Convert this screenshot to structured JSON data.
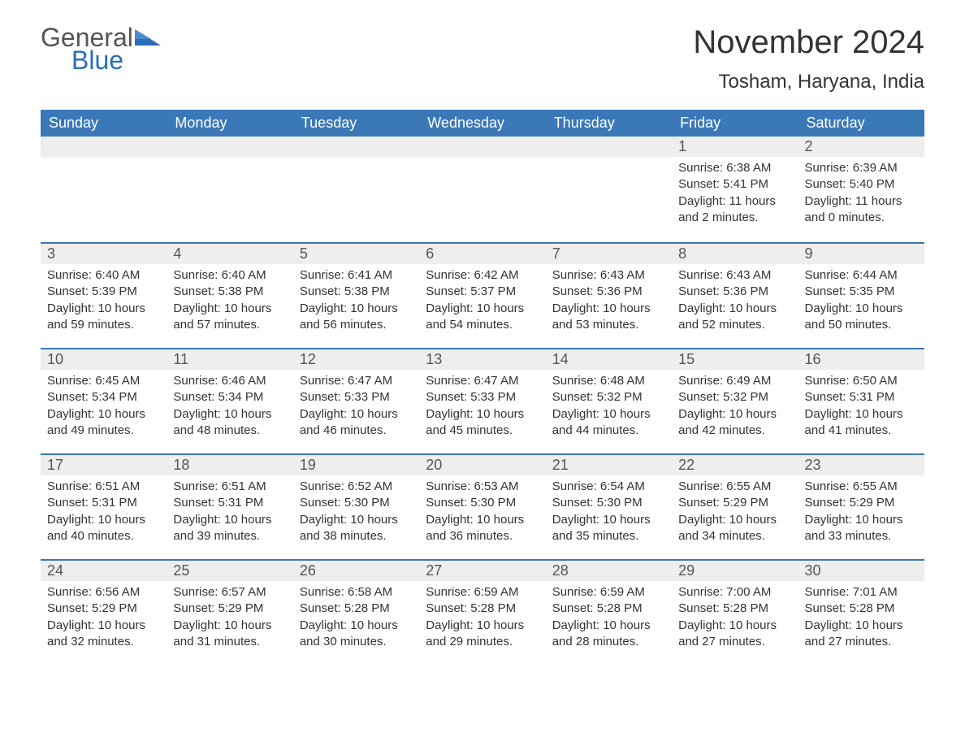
{
  "logo": {
    "general": "General",
    "blue": "Blue"
  },
  "title": "November 2024",
  "subtitle": "Tosham, Haryana, India",
  "colors": {
    "header_bg": "#3b78b8",
    "header_text": "#ffffff",
    "daynum_bg": "#eeeeee",
    "daynum_border": "#3b78b8",
    "body_text": "#333333",
    "logo_blue": "#2a6db8",
    "page_bg": "#ffffff"
  },
  "fonts": {
    "title_size_pt": 30,
    "subtitle_size_pt": 18,
    "header_size_pt": 14,
    "daynum_size_pt": 14,
    "body_size_pt": 11
  },
  "weekdays": [
    "Sunday",
    "Monday",
    "Tuesday",
    "Wednesday",
    "Thursday",
    "Friday",
    "Saturday"
  ],
  "weeks": [
    [
      null,
      null,
      null,
      null,
      null,
      {
        "n": "1",
        "sunrise": "6:38 AM",
        "sunset": "5:41 PM",
        "daylight": "11 hours and 2 minutes."
      },
      {
        "n": "2",
        "sunrise": "6:39 AM",
        "sunset": "5:40 PM",
        "daylight": "11 hours and 0 minutes."
      }
    ],
    [
      {
        "n": "3",
        "sunrise": "6:40 AM",
        "sunset": "5:39 PM",
        "daylight": "10 hours and 59 minutes."
      },
      {
        "n": "4",
        "sunrise": "6:40 AM",
        "sunset": "5:38 PM",
        "daylight": "10 hours and 57 minutes."
      },
      {
        "n": "5",
        "sunrise": "6:41 AM",
        "sunset": "5:38 PM",
        "daylight": "10 hours and 56 minutes."
      },
      {
        "n": "6",
        "sunrise": "6:42 AM",
        "sunset": "5:37 PM",
        "daylight": "10 hours and 54 minutes."
      },
      {
        "n": "7",
        "sunrise": "6:43 AM",
        "sunset": "5:36 PM",
        "daylight": "10 hours and 53 minutes."
      },
      {
        "n": "8",
        "sunrise": "6:43 AM",
        "sunset": "5:36 PM",
        "daylight": "10 hours and 52 minutes."
      },
      {
        "n": "9",
        "sunrise": "6:44 AM",
        "sunset": "5:35 PM",
        "daylight": "10 hours and 50 minutes."
      }
    ],
    [
      {
        "n": "10",
        "sunrise": "6:45 AM",
        "sunset": "5:34 PM",
        "daylight": "10 hours and 49 minutes."
      },
      {
        "n": "11",
        "sunrise": "6:46 AM",
        "sunset": "5:34 PM",
        "daylight": "10 hours and 48 minutes."
      },
      {
        "n": "12",
        "sunrise": "6:47 AM",
        "sunset": "5:33 PM",
        "daylight": "10 hours and 46 minutes."
      },
      {
        "n": "13",
        "sunrise": "6:47 AM",
        "sunset": "5:33 PM",
        "daylight": "10 hours and 45 minutes."
      },
      {
        "n": "14",
        "sunrise": "6:48 AM",
        "sunset": "5:32 PM",
        "daylight": "10 hours and 44 minutes."
      },
      {
        "n": "15",
        "sunrise": "6:49 AM",
        "sunset": "5:32 PM",
        "daylight": "10 hours and 42 minutes."
      },
      {
        "n": "16",
        "sunrise": "6:50 AM",
        "sunset": "5:31 PM",
        "daylight": "10 hours and 41 minutes."
      }
    ],
    [
      {
        "n": "17",
        "sunrise": "6:51 AM",
        "sunset": "5:31 PM",
        "daylight": "10 hours and 40 minutes."
      },
      {
        "n": "18",
        "sunrise": "6:51 AM",
        "sunset": "5:31 PM",
        "daylight": "10 hours and 39 minutes."
      },
      {
        "n": "19",
        "sunrise": "6:52 AM",
        "sunset": "5:30 PM",
        "daylight": "10 hours and 38 minutes."
      },
      {
        "n": "20",
        "sunrise": "6:53 AM",
        "sunset": "5:30 PM",
        "daylight": "10 hours and 36 minutes."
      },
      {
        "n": "21",
        "sunrise": "6:54 AM",
        "sunset": "5:30 PM",
        "daylight": "10 hours and 35 minutes."
      },
      {
        "n": "22",
        "sunrise": "6:55 AM",
        "sunset": "5:29 PM",
        "daylight": "10 hours and 34 minutes."
      },
      {
        "n": "23",
        "sunrise": "6:55 AM",
        "sunset": "5:29 PM",
        "daylight": "10 hours and 33 minutes."
      }
    ],
    [
      {
        "n": "24",
        "sunrise": "6:56 AM",
        "sunset": "5:29 PM",
        "daylight": "10 hours and 32 minutes."
      },
      {
        "n": "25",
        "sunrise": "6:57 AM",
        "sunset": "5:29 PM",
        "daylight": "10 hours and 31 minutes."
      },
      {
        "n": "26",
        "sunrise": "6:58 AM",
        "sunset": "5:28 PM",
        "daylight": "10 hours and 30 minutes."
      },
      {
        "n": "27",
        "sunrise": "6:59 AM",
        "sunset": "5:28 PM",
        "daylight": "10 hours and 29 minutes."
      },
      {
        "n": "28",
        "sunrise": "6:59 AM",
        "sunset": "5:28 PM",
        "daylight": "10 hours and 28 minutes."
      },
      {
        "n": "29",
        "sunrise": "7:00 AM",
        "sunset": "5:28 PM",
        "daylight": "10 hours and 27 minutes."
      },
      {
        "n": "30",
        "sunrise": "7:01 AM",
        "sunset": "5:28 PM",
        "daylight": "10 hours and 27 minutes."
      }
    ]
  ],
  "labels": {
    "sunrise_prefix": "Sunrise: ",
    "sunset_prefix": "Sunset: ",
    "daylight_prefix": "Daylight: "
  }
}
